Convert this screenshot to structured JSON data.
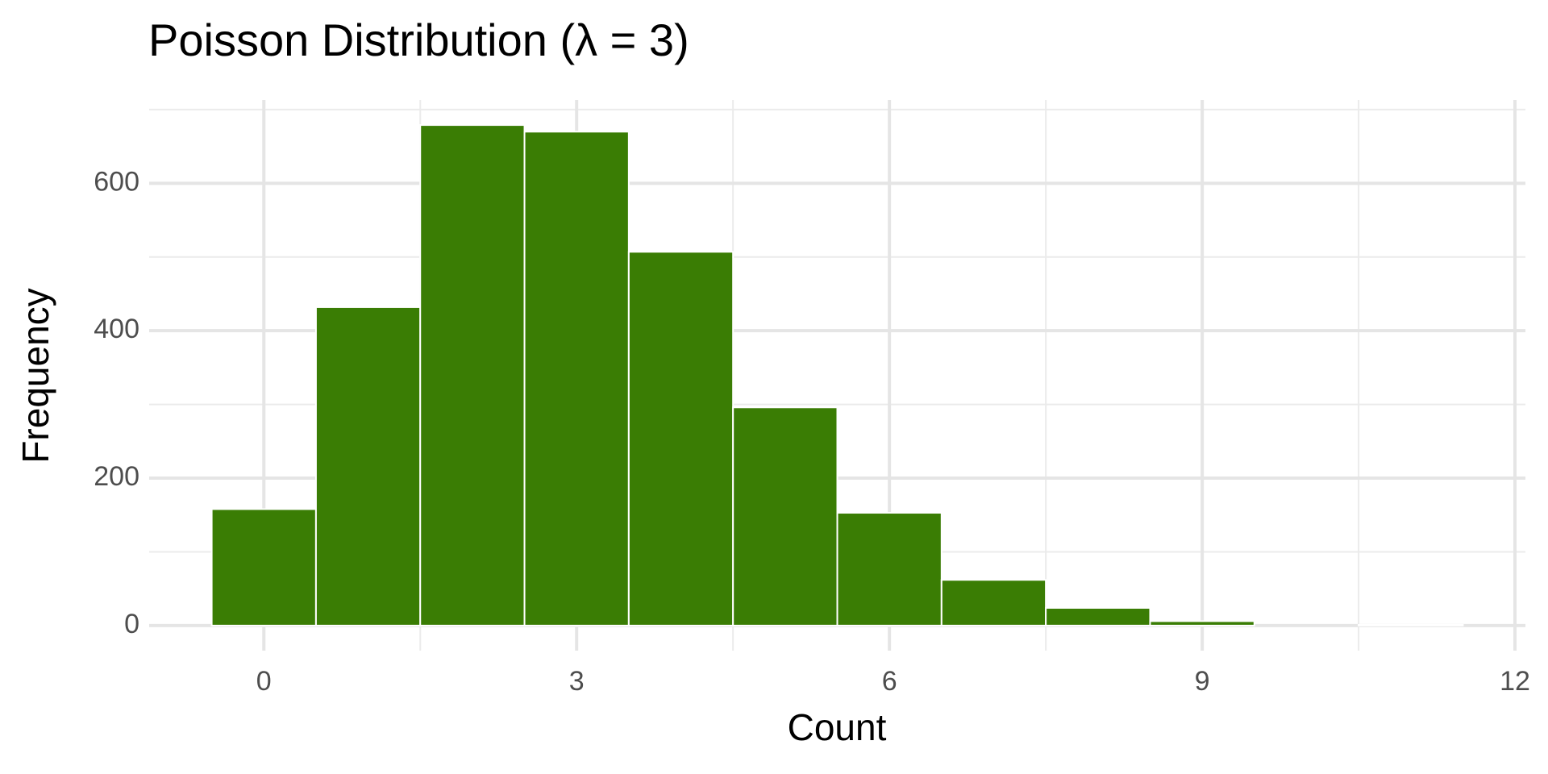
{
  "chart_data": {
    "type": "histogram",
    "title": "Poisson Distribution (λ = 3)",
    "x_label": "Count",
    "y_label": "Frequency",
    "bins": [
      -0.5,
      0.5,
      1.5,
      2.5,
      3.5,
      4.5,
      5.5,
      6.5,
      7.5,
      8.5,
      9.5,
      10.5,
      11.5
    ],
    "counts": [
      158,
      432,
      679,
      670,
      507,
      296,
      153,
      62,
      24,
      6,
      0,
      1
    ],
    "color": "#3a7d04",
    "xlim": [
      -1.1,
      12.1
    ],
    "xticks": [
      0,
      3,
      6,
      9,
      12
    ],
    "xminor": [
      1.5,
      4.5,
      7.5,
      10.5
    ],
    "ylim": [
      -34,
      713
    ],
    "yticks": [
      0,
      200,
      400,
      600
    ],
    "yminor": [
      100,
      300,
      500,
      700
    ],
    "grid": true
  }
}
